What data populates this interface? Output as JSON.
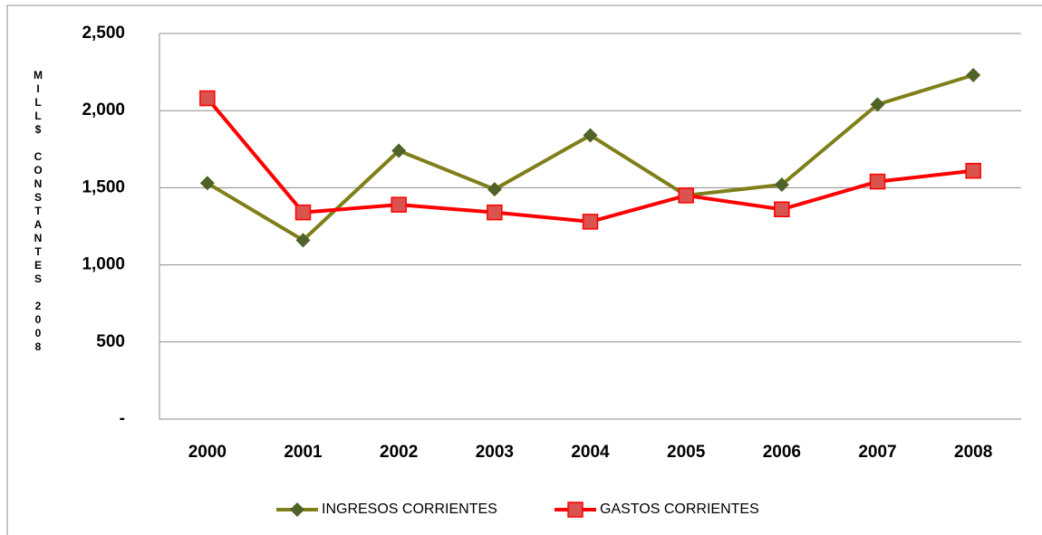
{
  "chart_data": {
    "type": "line",
    "y_label": "MILL$ CONSTANTES 2008",
    "categories": [
      "2000",
      "2001",
      "2002",
      "2003",
      "2004",
      "2005",
      "2006",
      "2007",
      "2008"
    ],
    "series": [
      {
        "name": "INGRESOS CORRIENTES",
        "color": "#7f7f1a",
        "marker_color": "#4f6228",
        "marker": "diamond",
        "values": [
          1530,
          1160,
          1740,
          1490,
          1840,
          1450,
          1520,
          2040,
          2230
        ]
      },
      {
        "name": "GASTOS CORRIENTES",
        "color": "#ff0000",
        "marker_color": "#d9534f",
        "marker": "square",
        "values": [
          2080,
          1340,
          1390,
          1340,
          1280,
          1450,
          1360,
          1540,
          1610
        ]
      }
    ],
    "ylim": [
      0,
      2500
    ],
    "yticks": [
      {
        "value": 0,
        "label": "-"
      },
      500,
      {
        "value": 1000,
        "label": "1,000"
      },
      {
        "value": 1500,
        "label": "1,500"
      },
      {
        "value": 2000,
        "label": "2,000"
      },
      {
        "value": 2500,
        "label": "2,500"
      }
    ],
    "grid": true,
    "legend": "bottom"
  }
}
